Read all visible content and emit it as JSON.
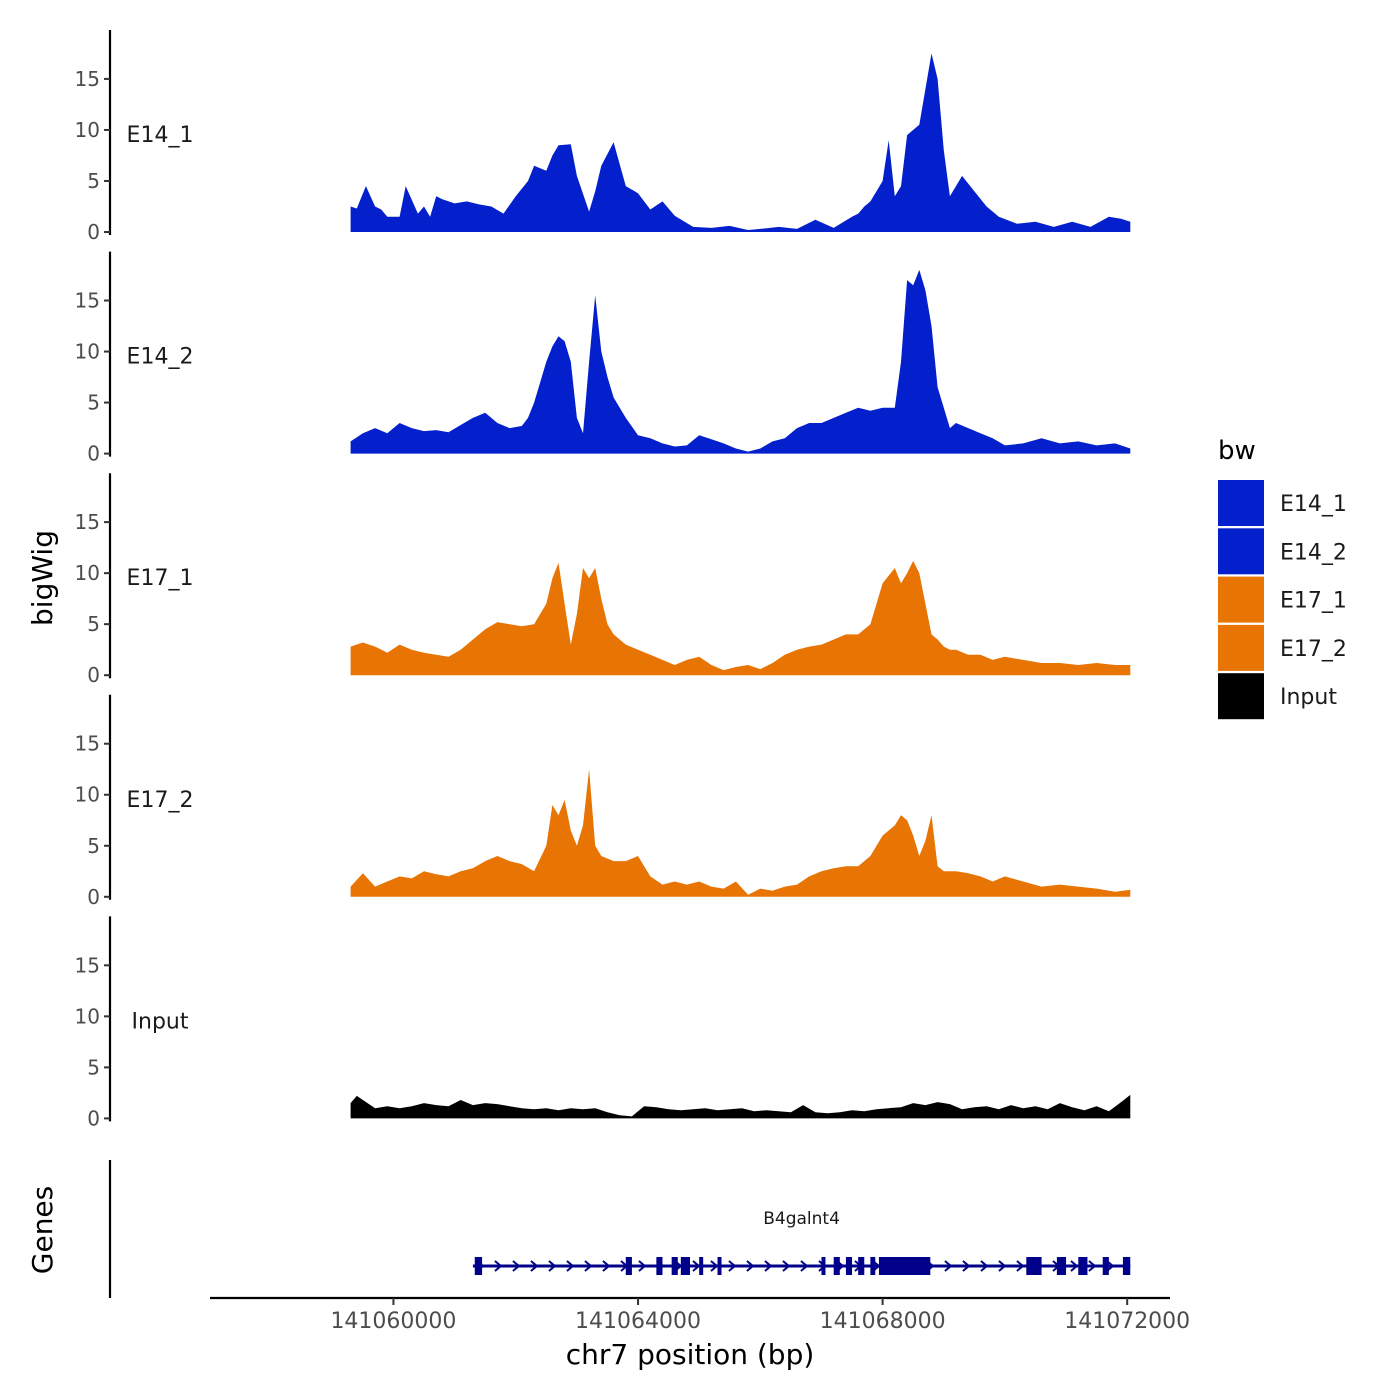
{
  "chart_data": {
    "type": "area",
    "title": "",
    "ylabel": "bigWig",
    "xlabel": "chr7 position (bp)",
    "genes_label": "Genes",
    "xlim": [
      141057000,
      141072700
    ],
    "x_data_range": [
      141059300,
      141072050
    ],
    "ylim": [
      0,
      19.5
    ],
    "y_ticks": [
      0,
      5,
      10,
      15
    ],
    "x_ticks": [
      141060000,
      141064000,
      141068000,
      141072000
    ],
    "x_tick_labels": [
      "141060000",
      "141064000",
      "141068000",
      "141072000"
    ],
    "legend": {
      "title": "bw",
      "entries": [
        {
          "label": "E14_1",
          "color": "#0320CC"
        },
        {
          "label": "E14_2",
          "color": "#0320CC"
        },
        {
          "label": "E17_1",
          "color": "#E87404"
        },
        {
          "label": "E17_2",
          "color": "#E87404"
        },
        {
          "label": "Input",
          "color": "#000000"
        }
      ]
    },
    "series": [
      {
        "name": "E14_1",
        "color": "#0320CC",
        "x": [
          141059300,
          141059400,
          141059550,
          141059700,
          141059800,
          141059900,
          141060100,
          141060200,
          141060400,
          141060500,
          141060600,
          141060700,
          141060800,
          141061000,
          141061200,
          141061400,
          141061600,
          141061800,
          141062000,
          141062200,
          141062300,
          141062500,
          141062600,
          141062700,
          141062900,
          141063000,
          141063200,
          141063300,
          141063400,
          141063600,
          141063800,
          141064000,
          141064200,
          141064400,
          141064600,
          141064900,
          141065200,
          141065500,
          141065800,
          141066000,
          141066300,
          141066600,
          141066900,
          141067200,
          141067500,
          141067600,
          141067700,
          141067800,
          141067900,
          141068000,
          141068100,
          141068200,
          141068300,
          141068400,
          141068500,
          141068600,
          141068700,
          141068800,
          141068900,
          141069000,
          141069100,
          141069300,
          141069500,
          141069700,
          141069900,
          141070200,
          141070500,
          141070800,
          141071100,
          141071400,
          141071700,
          141071900,
          141072050
        ],
        "values": [
          2.5,
          2.3,
          4.5,
          2.5,
          2.2,
          1.5,
          1.5,
          4.5,
          1.8,
          2.5,
          1.5,
          3.5,
          3.2,
          2.8,
          3,
          2.7,
          2.5,
          1.8,
          3.5,
          5,
          6.5,
          6,
          7.5,
          8.5,
          8.6,
          5.5,
          2,
          4,
          6.5,
          8.8,
          4.5,
          3.8,
          2.2,
          3,
          1.6,
          0.5,
          0.4,
          0.6,
          0.2,
          0.3,
          0.5,
          0.3,
          1.2,
          0.4,
          1.5,
          1.8,
          2.5,
          3,
          4,
          5,
          9,
          3.5,
          4.5,
          9.5,
          10,
          10.5,
          14,
          17.5,
          15,
          8,
          3.5,
          5.5,
          4,
          2.5,
          1.5,
          0.8,
          1,
          0.5,
          1,
          0.5,
          1.5,
          1.3,
          1
        ]
      },
      {
        "name": "E14_2",
        "color": "#0320CC",
        "x": [
          141059300,
          141059500,
          141059700,
          141059900,
          141060100,
          141060300,
          141060500,
          141060700,
          141060900,
          141061100,
          141061300,
          141061500,
          141061700,
          141061900,
          141062100,
          141062200,
          141062300,
          141062400,
          141062500,
          141062600,
          141062700,
          141062800,
          141062900,
          141063000,
          141063100,
          141063200,
          141063300,
          141063400,
          141063500,
          141063600,
          141063800,
          141064000,
          141064200,
          141064400,
          141064600,
          141064800,
          141065000,
          141065200,
          141065400,
          141065600,
          141065800,
          141066000,
          141066200,
          141066400,
          141066600,
          141066800,
          141067000,
          141067200,
          141067400,
          141067600,
          141067800,
          141068000,
          141068200,
          141068300,
          141068400,
          141068500,
          141068600,
          141068700,
          141068800,
          141068900,
          141069000,
          141069100,
          141069200,
          141069400,
          141069600,
          141069800,
          141070000,
          141070300,
          141070600,
          141070900,
          141071200,
          141071500,
          141071800,
          141072050
        ],
        "values": [
          1.2,
          2,
          2.5,
          2,
          3,
          2.5,
          2.2,
          2.3,
          2.1,
          2.8,
          3.5,
          4,
          3,
          2.5,
          2.7,
          3.5,
          5,
          7,
          9,
          10.5,
          11.5,
          11,
          9,
          3.5,
          2,
          9,
          15.5,
          10,
          7.5,
          5.5,
          3.5,
          1.8,
          1.5,
          1,
          0.7,
          0.8,
          1.8,
          1.4,
          1,
          0.5,
          0.2,
          0.5,
          1.2,
          1.5,
          2.5,
          3,
          3,
          3.5,
          4,
          4.5,
          4.2,
          4.5,
          4.5,
          9,
          17,
          16.5,
          18,
          16,
          12.5,
          6.5,
          4.5,
          2.5,
          3,
          2.5,
          2,
          1.5,
          0.8,
          1,
          1.5,
          1,
          1.2,
          0.8,
          1,
          0.5
        ]
      },
      {
        "name": "E17_1",
        "color": "#E87404",
        "x": [
          141059300,
          141059500,
          141059700,
          141059900,
          141060100,
          141060300,
          141060500,
          141060700,
          141060900,
          141061100,
          141061300,
          141061500,
          141061700,
          141061900,
          141062100,
          141062300,
          141062500,
          141062600,
          141062700,
          141062800,
          141062900,
          141063000,
          141063100,
          141063200,
          141063300,
          141063400,
          141063500,
          141063600,
          141063800,
          141064000,
          141064200,
          141064400,
          141064600,
          141064800,
          141065000,
          141065200,
          141065400,
          141065600,
          141065800,
          141066000,
          141066200,
          141066400,
          141066600,
          141066800,
          141067000,
          141067200,
          141067400,
          141067600,
          141067800,
          141068000,
          141068200,
          141068300,
          141068400,
          141068500,
          141068600,
          141068700,
          141068800,
          141068900,
          141069000,
          141069100,
          141069200,
          141069400,
          141069600,
          141069800,
          141070000,
          141070300,
          141070600,
          141070900,
          141071200,
          141071500,
          141071800,
          141072050
        ],
        "values": [
          2.8,
          3.2,
          2.8,
          2.2,
          3,
          2.5,
          2.2,
          2,
          1.8,
          2.5,
          3.5,
          4.5,
          5.2,
          5,
          4.8,
          5,
          7,
          9.5,
          11,
          7,
          3,
          6,
          10.5,
          9.5,
          10.5,
          7.5,
          5,
          4,
          3,
          2.5,
          2,
          1.5,
          1,
          1.5,
          1.8,
          1,
          0.5,
          0.8,
          1,
          0.6,
          1.2,
          2,
          2.5,
          2.8,
          3,
          3.5,
          4,
          4,
          5,
          9,
          10.5,
          9,
          10,
          11.2,
          10,
          7,
          4,
          3.5,
          2.8,
          2.5,
          2.5,
          2,
          2,
          1.5,
          1.8,
          1.5,
          1.2,
          1.2,
          1,
          1.2,
          1,
          1
        ]
      },
      {
        "name": "E17_2",
        "color": "#E87404",
        "x": [
          141059300,
          141059500,
          141059700,
          141059900,
          141060100,
          141060300,
          141060500,
          141060700,
          141060900,
          141061100,
          141061300,
          141061500,
          141061700,
          141061900,
          141062100,
          141062300,
          141062500,
          141062600,
          141062700,
          141062800,
          141062900,
          141063000,
          141063100,
          141063200,
          141063300,
          141063400,
          141063600,
          141063800,
          141064000,
          141064200,
          141064400,
          141064600,
          141064800,
          141065000,
          141065200,
          141065400,
          141065600,
          141065800,
          141066000,
          141066200,
          141066400,
          141066600,
          141066800,
          141067000,
          141067200,
          141067400,
          141067600,
          141067800,
          141068000,
          141068200,
          141068300,
          141068400,
          141068500,
          141068600,
          141068700,
          141068800,
          141068900,
          141069000,
          141069100,
          141069200,
          141069400,
          141069600,
          141069800,
          141070000,
          141070300,
          141070600,
          141070900,
          141071200,
          141071500,
          141071800,
          141072050
        ],
        "values": [
          1,
          2.3,
          1,
          1.5,
          2,
          1.8,
          2.5,
          2.2,
          2,
          2.5,
          2.8,
          3.5,
          4,
          3.5,
          3.2,
          2.5,
          5,
          9,
          8,
          9.5,
          6.5,
          5,
          7,
          12.5,
          5,
          4,
          3.5,
          3.5,
          4,
          2,
          1.2,
          1.5,
          1.2,
          1.5,
          1,
          0.8,
          1.5,
          0.2,
          0.8,
          0.6,
          1,
          1.2,
          2,
          2.5,
          2.8,
          3,
          3,
          4,
          6,
          7,
          8,
          7.5,
          6,
          4,
          5.5,
          8,
          3,
          2.5,
          2.5,
          2.5,
          2.3,
          2,
          1.5,
          2,
          1.5,
          1,
          1.2,
          1,
          0.8,
          0.5,
          0.7
        ]
      },
      {
        "name": "Input",
        "color": "#000000",
        "x": [
          141059300,
          141059400,
          141059500,
          141059700,
          141059900,
          141060100,
          141060300,
          141060500,
          141060700,
          141060900,
          141061100,
          141061300,
          141061500,
          141061700,
          141061900,
          141062100,
          141062300,
          141062500,
          141062700,
          141062900,
          141063100,
          141063300,
          141063500,
          141063700,
          141063900,
          141064100,
          141064300,
          141064500,
          141064700,
          141064900,
          141065100,
          141065300,
          141065500,
          141065700,
          141065900,
          141066100,
          141066300,
          141066500,
          141066700,
          141066900,
          141067100,
          141067300,
          141067500,
          141067700,
          141067900,
          141068100,
          141068300,
          141068500,
          141068700,
          141068900,
          141069100,
          141069300,
          141069500,
          141069700,
          141069900,
          141070100,
          141070300,
          141070500,
          141070700,
          141070900,
          141071100,
          141071300,
          141071500,
          141071700,
          141071900,
          141072050
        ],
        "values": [
          1.5,
          2.2,
          1.8,
          1,
          1.2,
          1,
          1.2,
          1.5,
          1.3,
          1.2,
          1.8,
          1.3,
          1.5,
          1.4,
          1.2,
          1,
          0.9,
          1,
          0.8,
          1,
          0.9,
          1,
          0.6,
          0.3,
          0.2,
          1.2,
          1.1,
          0.9,
          0.8,
          0.9,
          1,
          0.8,
          0.9,
          1,
          0.7,
          0.8,
          0.7,
          0.6,
          1.3,
          0.6,
          0.5,
          0.6,
          0.8,
          0.7,
          0.9,
          1,
          1.1,
          1.5,
          1.3,
          1.6,
          1.4,
          0.9,
          1.1,
          1.2,
          0.9,
          1.3,
          1,
          1.2,
          0.9,
          1.5,
          1.1,
          0.8,
          1.2,
          0.7,
          1.6,
          2.3
        ]
      }
    ],
    "gene": {
      "name": "B4galnt4",
      "strand": "+",
      "color": "#00008B",
      "start": 141061300,
      "end": 141072050,
      "exons": [
        [
          141061330,
          141061450
        ],
        [
          141063800,
          141063900
        ],
        [
          141064300,
          141064400
        ],
        [
          141064550,
          141064650
        ],
        [
          141064700,
          141064850
        ],
        [
          141065000,
          141065050
        ],
        [
          141065300,
          141065350
        ],
        [
          141067000,
          141067050
        ],
        [
          141067200,
          141067300
        ],
        [
          141067400,
          141067500
        ],
        [
          141067600,
          141067700
        ],
        [
          141067800,
          141067880
        ],
        [
          141067940,
          141068780
        ],
        [
          141070350,
          141070600
        ],
        [
          141070850,
          141071000
        ],
        [
          141071200,
          141071350
        ],
        [
          141071600,
          141071700
        ],
        [
          141071930,
          141072050
        ]
      ]
    }
  }
}
